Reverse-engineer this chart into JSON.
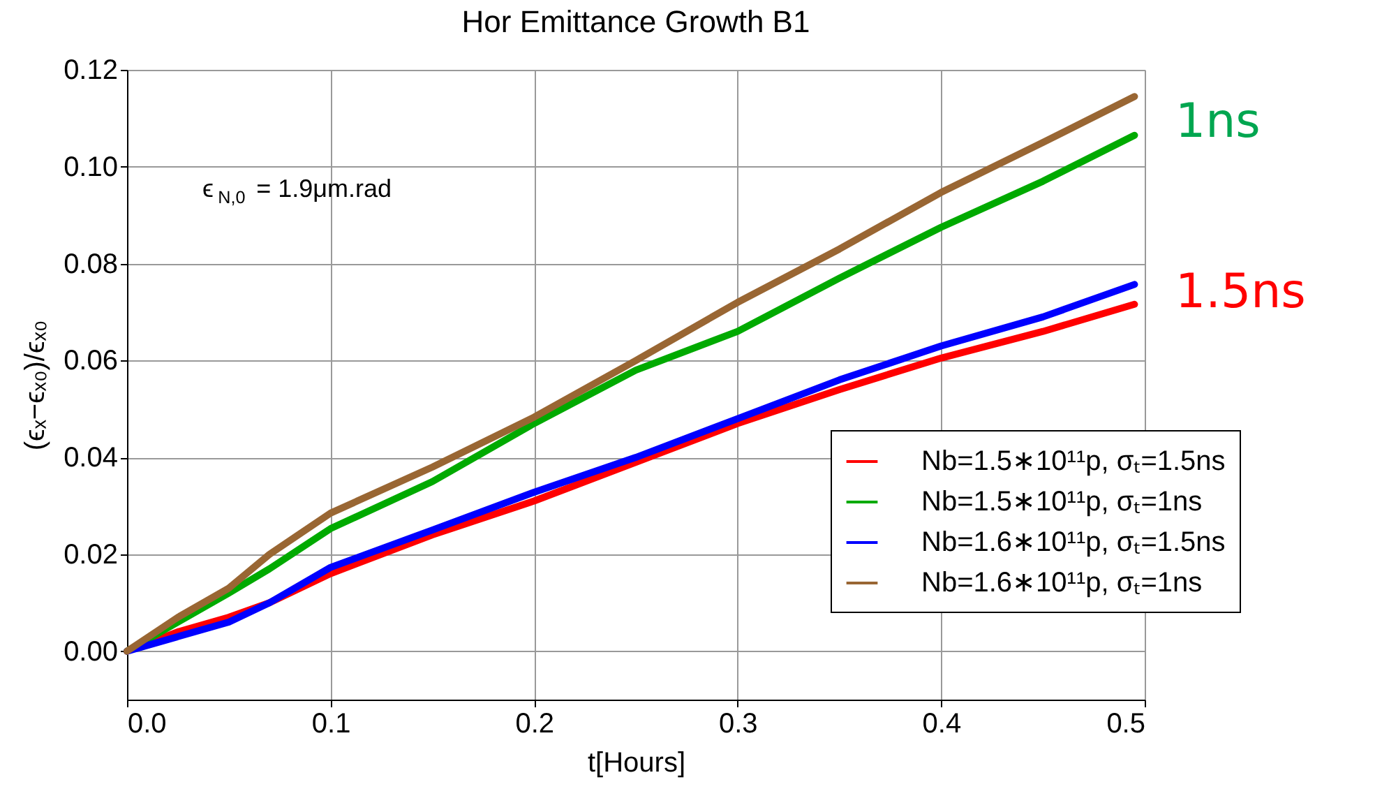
{
  "chart_data": {
    "type": "line",
    "title": "Hor Emittance Growth B1",
    "xlabel": "t[Hours]",
    "ylabel": "(ϵₓ−ϵₓ₀)/ϵₓ₀",
    "x": [
      0,
      0.025,
      0.05,
      0.07,
      0.1,
      0.15,
      0.2,
      0.25,
      0.3,
      0.35,
      0.4,
      0.45,
      0.495
    ],
    "series": [
      {
        "name": "Nb=1.5∗10¹¹p, σₜ=1.5ns",
        "color": "#ff0000",
        "values": [
          0,
          0.004,
          0.007,
          0.01,
          0.016,
          0.024,
          0.031,
          0.039,
          0.047,
          0.054,
          0.0605,
          0.066,
          0.0716
        ]
      },
      {
        "name": "Nb=1.5∗10¹¹p, σₜ=1ns",
        "color": "#00aa00",
        "values": [
          0,
          0.006,
          0.012,
          0.017,
          0.0253,
          0.035,
          0.047,
          0.058,
          0.066,
          0.077,
          0.0875,
          0.097,
          0.1065
        ]
      },
      {
        "name": "Nb=1.6∗10¹¹p, σₜ=1.5ns",
        "color": "#0000ff",
        "values": [
          0,
          0.003,
          0.006,
          0.01,
          0.0173,
          0.025,
          0.0328,
          0.04,
          0.048,
          0.056,
          0.063,
          0.069,
          0.0757
        ]
      },
      {
        "name": "Nb=1.6∗10¹¹p, σₜ=1ns",
        "color": "#996633",
        "values": [
          0,
          0.007,
          0.013,
          0.02,
          0.0285,
          0.038,
          0.0483,
          0.06,
          0.072,
          0.083,
          0.0947,
          0.105,
          0.1145
        ]
      }
    ],
    "xlim": [
      0,
      0.5
    ],
    "ylim": [
      -0.01,
      0.12
    ],
    "xticks": [
      {
        "value": 0,
        "label": "0.0"
      },
      0.1,
      0.2,
      0.3,
      0.4,
      0.5
    ],
    "yticks": [
      {
        "value": 0,
        "label": "0.00"
      },
      0.02,
      0.04,
      0.06,
      0.08,
      {
        "value": 0.1,
        "label": "0.10"
      },
      0.12
    ],
    "annotations": [
      "ϵ$_{N,0}$ = 1.9μm.rad",
      "1ns",
      "1.5ns"
    ],
    "grid": true,
    "legend": "bottom right",
    "marker": "none",
    "line_style": "solid"
  }
}
